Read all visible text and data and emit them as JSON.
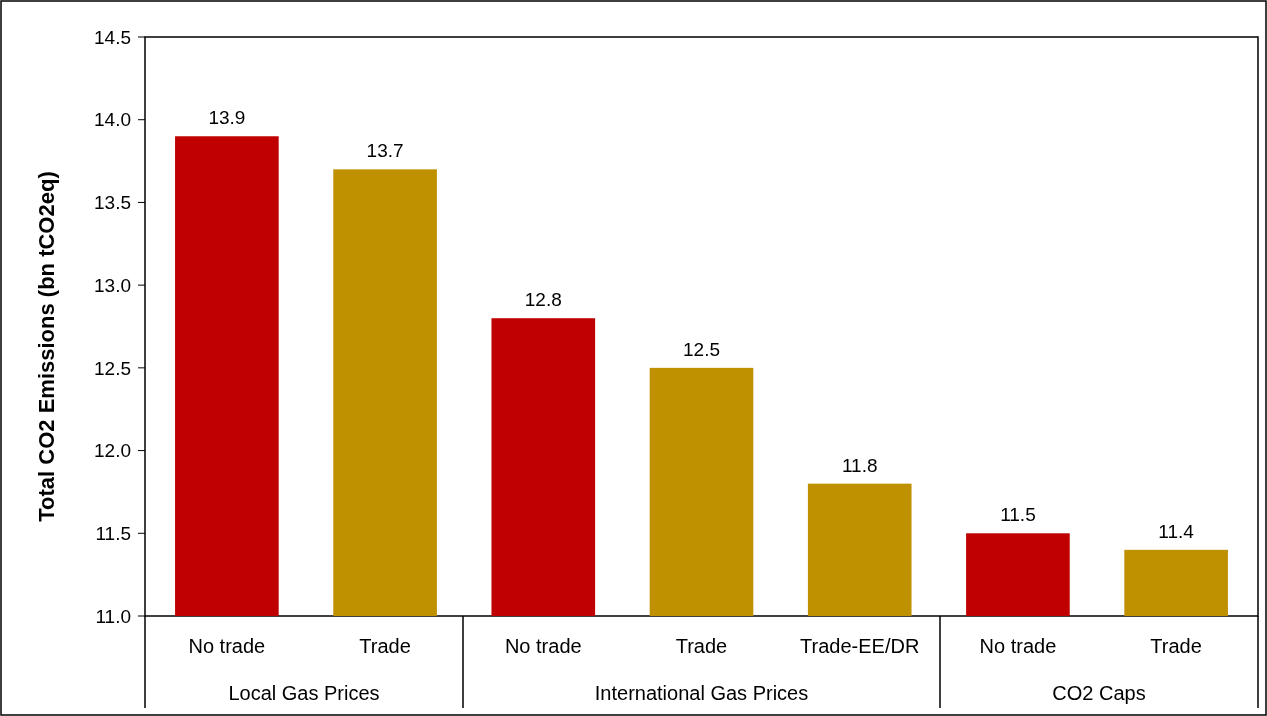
{
  "chart_data": {
    "type": "bar",
    "ylabel": "Total CO2 Emissions (bn tCO2eq)",
    "categories": [
      "No trade",
      "Trade",
      "No trade",
      "Trade",
      "Trade-EE/DR",
      "No trade",
      "Trade"
    ],
    "values": [
      13.9,
      13.7,
      12.8,
      12.5,
      11.8,
      11.5,
      11.4
    ],
    "colors": [
      "#c00000",
      "#bf9000",
      "#c00000",
      "#bf9000",
      "#bf9000",
      "#c00000",
      "#bf9000"
    ],
    "ylim": [
      11.0,
      14.5
    ],
    "yticks": [
      {
        "value": 11,
        "label": "11.0"
      },
      {
        "value": 11.5,
        "label": "11.5"
      },
      {
        "value": 12,
        "label": "12.0"
      },
      {
        "value": 12.5,
        "label": "12.5"
      },
      {
        "value": 13,
        "label": "13.0"
      },
      {
        "value": 13.5,
        "label": "13.5"
      },
      {
        "value": 14,
        "label": "14.0"
      },
      {
        "value": 14.5,
        "label": "14.5"
      }
    ],
    "data_labels": true,
    "annotations": [
      "Local Gas Prices",
      "International Gas Prices",
      "CO2 Caps"
    ]
  }
}
